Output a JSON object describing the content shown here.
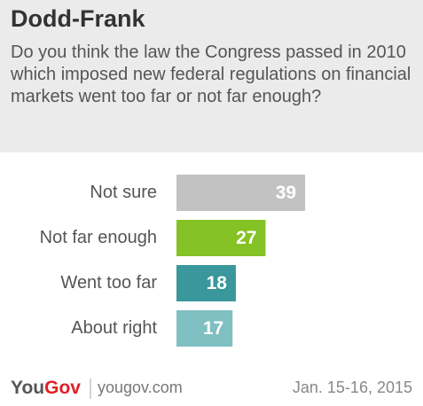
{
  "chart_data": {
    "type": "bar",
    "orientation": "horizontal",
    "title": "Dodd-Frank",
    "subtitle": "Do you think the law the Congress passed in 2010 which imposed new federal regulations on financial markets went too far or not far enough?",
    "categories": [
      "Not sure",
      "Not far enough",
      "Went too far",
      "About right"
    ],
    "values": [
      39,
      27,
      18,
      17
    ],
    "colors": [
      "#c2c2c2",
      "#84c225",
      "#3a979b",
      "#80bfc2"
    ],
    "logo": [
      "You",
      "Gov"
    ],
    "website": "yougov.com",
    "date": "Jan. 15-16, 2015"
  }
}
